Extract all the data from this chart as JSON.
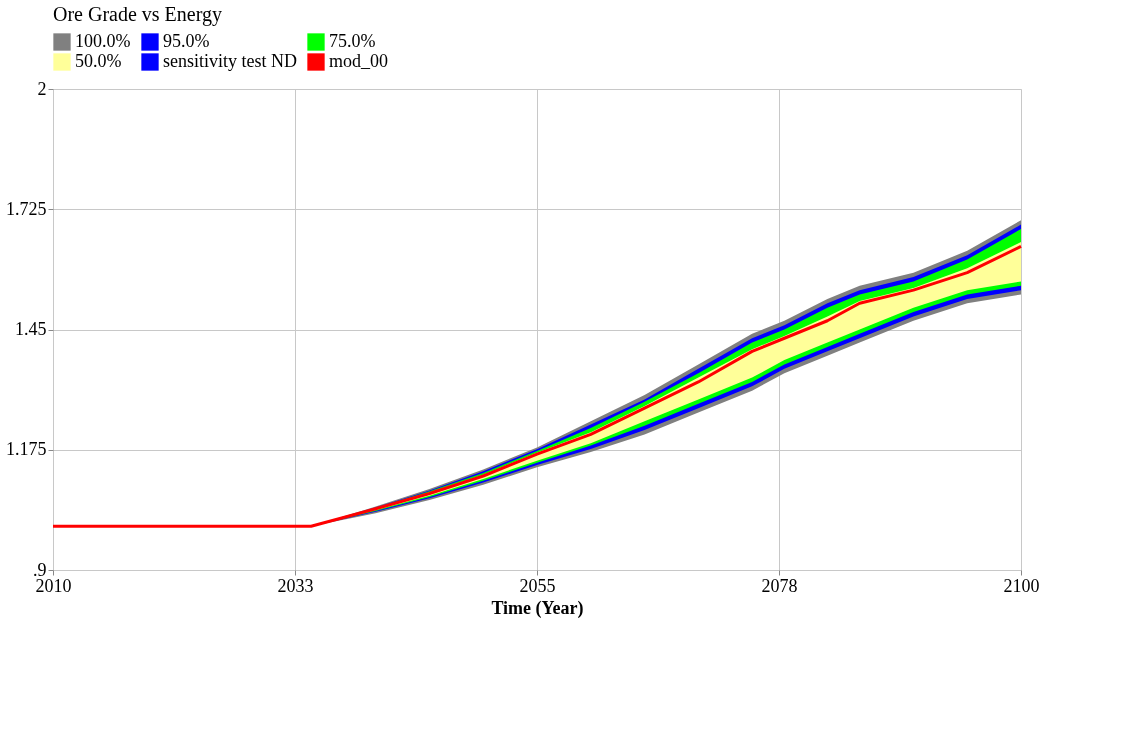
{
  "chart_data": {
    "type": "line",
    "title": "Ore Grade vs Energy",
    "xlabel": "Time (Year)",
    "x": [
      2010,
      2034,
      2040,
      2045,
      2050,
      2055,
      2060,
      2065,
      2070,
      2075,
      2078,
      2082,
      2085,
      2090,
      2095,
      2100
    ],
    "xlim": [
      2010,
      2100
    ],
    "xticks": [
      2010,
      {
        "value": 2032.5,
        "label": "2033"
      },
      2055,
      {
        "value": 2077.5,
        "label": "2078"
      },
      2100
    ],
    "ylim": [
      0.9,
      2
    ],
    "yticks": [
      {
        "value": 0.9,
        "label": ".9"
      },
      1.175,
      1.45,
      1.725,
      2
    ],
    "grid": true,
    "legend": "top left",
    "line_style": "solid",
    "series": [
      {
        "name": "100.0%",
        "color": "#808080",
        "lower": [
          1.0,
          1.0,
          1.03,
          1.06,
          1.095,
          1.135,
          1.17,
          1.21,
          1.26,
          1.31,
          1.35,
          1.39,
          1.42,
          1.47,
          1.51,
          1.53
        ],
        "upper": [
          1.0,
          1.0,
          1.045,
          1.085,
          1.13,
          1.18,
          1.24,
          1.3,
          1.37,
          1.44,
          1.47,
          1.52,
          1.55,
          1.58,
          1.63,
          1.7
        ],
        "values": [
          null,
          null,
          null,
          null,
          null,
          null,
          null,
          null,
          null,
          null,
          null,
          null,
          null,
          null,
          null,
          null
        ]
      },
      {
        "name": "95.0%",
        "color": "#0000ff",
        "lower": [
          1.0,
          1.0,
          1.033,
          1.064,
          1.1,
          1.14,
          1.177,
          1.22,
          1.27,
          1.32,
          1.36,
          1.4,
          1.43,
          1.48,
          1.52,
          1.54
        ],
        "upper": [
          1.0,
          1.0,
          1.043,
          1.082,
          1.126,
          1.176,
          1.233,
          1.29,
          1.36,
          1.43,
          1.46,
          1.51,
          1.54,
          1.57,
          1.62,
          1.69
        ],
        "values": [
          null,
          null,
          null,
          null,
          null,
          null,
          null,
          null,
          null,
          null,
          null,
          null,
          null,
          null,
          null,
          null
        ]
      },
      {
        "name": "75.0%",
        "color": "#00ff00",
        "lower": [
          1.0,
          1.0,
          1.035,
          1.067,
          1.104,
          1.145,
          1.185,
          1.23,
          1.28,
          1.33,
          1.37,
          1.41,
          1.44,
          1.49,
          1.53,
          1.55
        ],
        "upper": [
          1.0,
          1.0,
          1.042,
          1.08,
          1.122,
          1.172,
          1.225,
          1.285,
          1.35,
          1.42,
          1.45,
          1.5,
          1.53,
          1.56,
          1.61,
          1.68
        ],
        "values": [
          null,
          null,
          null,
          null,
          null,
          null,
          null,
          null,
          null,
          null,
          null,
          null,
          null,
          null,
          null,
          null
        ]
      },
      {
        "name": "50.0%",
        "color": "#ffff99",
        "lower": [
          1.0,
          1.0,
          1.037,
          1.07,
          1.108,
          1.15,
          1.19,
          1.24,
          1.29,
          1.34,
          1.38,
          1.42,
          1.45,
          1.5,
          1.54,
          1.56
        ],
        "upper": [
          1.0,
          1.0,
          1.041,
          1.077,
          1.118,
          1.168,
          1.215,
          1.275,
          1.34,
          1.405,
          1.435,
          1.48,
          1.515,
          1.545,
          1.59,
          1.65
        ],
        "values": [
          null,
          null,
          null,
          null,
          null,
          null,
          null,
          null,
          null,
          null,
          null,
          null,
          null,
          null,
          null,
          null
        ]
      },
      {
        "name": "sensitivity test ND",
        "color": "#0000ff",
        "values": [
          null,
          null,
          null,
          null,
          null,
          null,
          null,
          null,
          null,
          null,
          null,
          null,
          null,
          null,
          null,
          null
        ]
      },
      {
        "name": "mod_00",
        "color": "#ff0000",
        "values": [
          1.0,
          1.0,
          1.04,
          1.075,
          1.115,
          1.165,
          1.21,
          1.27,
          1.33,
          1.4,
          1.43,
          1.47,
          1.51,
          1.54,
          1.58,
          1.64
        ]
      }
    ]
  }
}
